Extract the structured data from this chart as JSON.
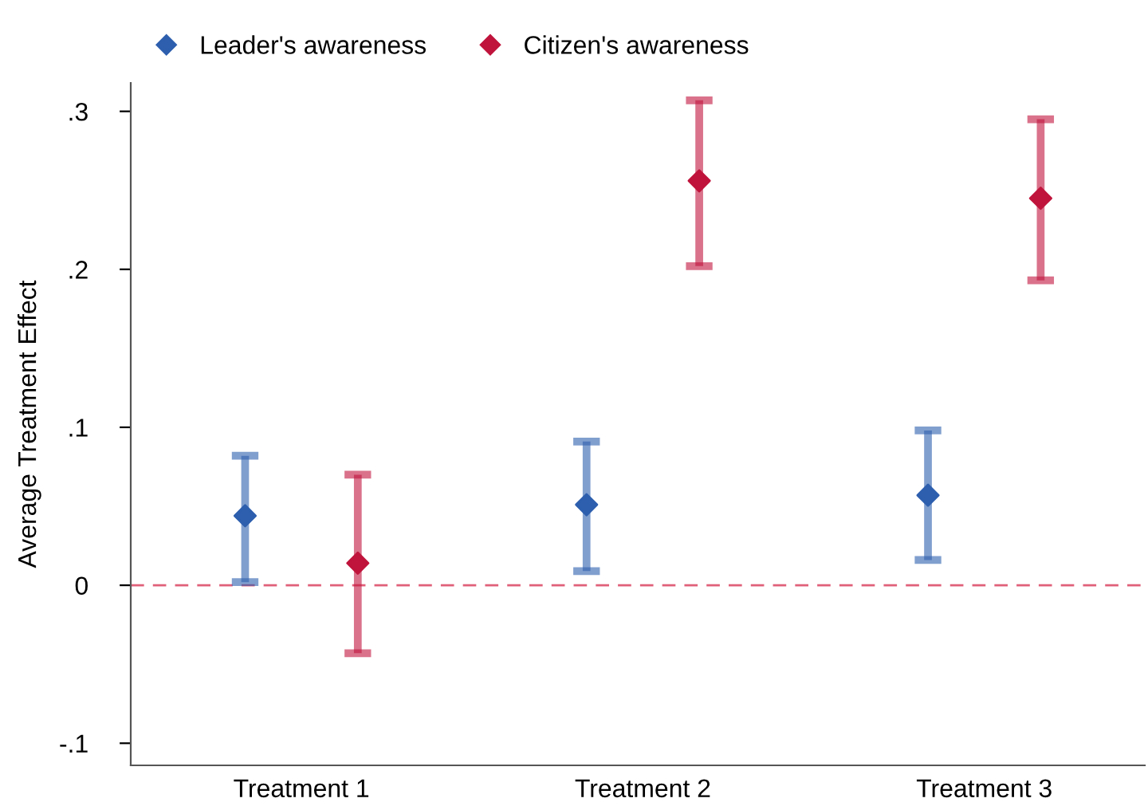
{
  "chart_data": {
    "type": "scatter",
    "ylabel": "Average Treatment Effect",
    "categories": [
      "Treatment 1",
      "Treatment 2",
      "Treatment 3"
    ],
    "series": [
      {
        "name": "Leader's awareness",
        "color": "#2d5fae",
        "x": [
          "Treatment 1",
          "Treatment 2",
          "Treatment 3"
        ],
        "values": [
          0.044,
          0.051,
          0.057
        ],
        "errors": [
          [
            0.002,
            0.082
          ],
          [
            0.009,
            0.091
          ],
          [
            0.016,
            0.098
          ]
        ]
      },
      {
        "name": "Citizen's awareness",
        "color": "#c0143c",
        "x": [
          "Treatment 1",
          "Treatment 2",
          "Treatment 3"
        ],
        "values": [
          0.014,
          0.256,
          0.245
        ],
        "errors": [
          [
            -0.043,
            0.07
          ],
          [
            0.202,
            0.307
          ],
          [
            0.193,
            0.295
          ]
        ]
      }
    ],
    "ylim": [
      -0.114,
      0.318
    ],
    "yticks": [
      {
        "value": -0.1,
        "label": "-.1"
      },
      0,
      {
        "value": 0.1,
        "label": ".1"
      },
      {
        "value": 0.2,
        "label": ".2"
      },
      {
        "value": 0.3,
        "label": ".3"
      }
    ],
    "ref_lines": [
      {
        "axis": "y",
        "value": 0,
        "color": "#e0607a",
        "line_style": "dashed"
      }
    ],
    "marker": "diamond",
    "legend": "top left",
    "grid": false
  }
}
